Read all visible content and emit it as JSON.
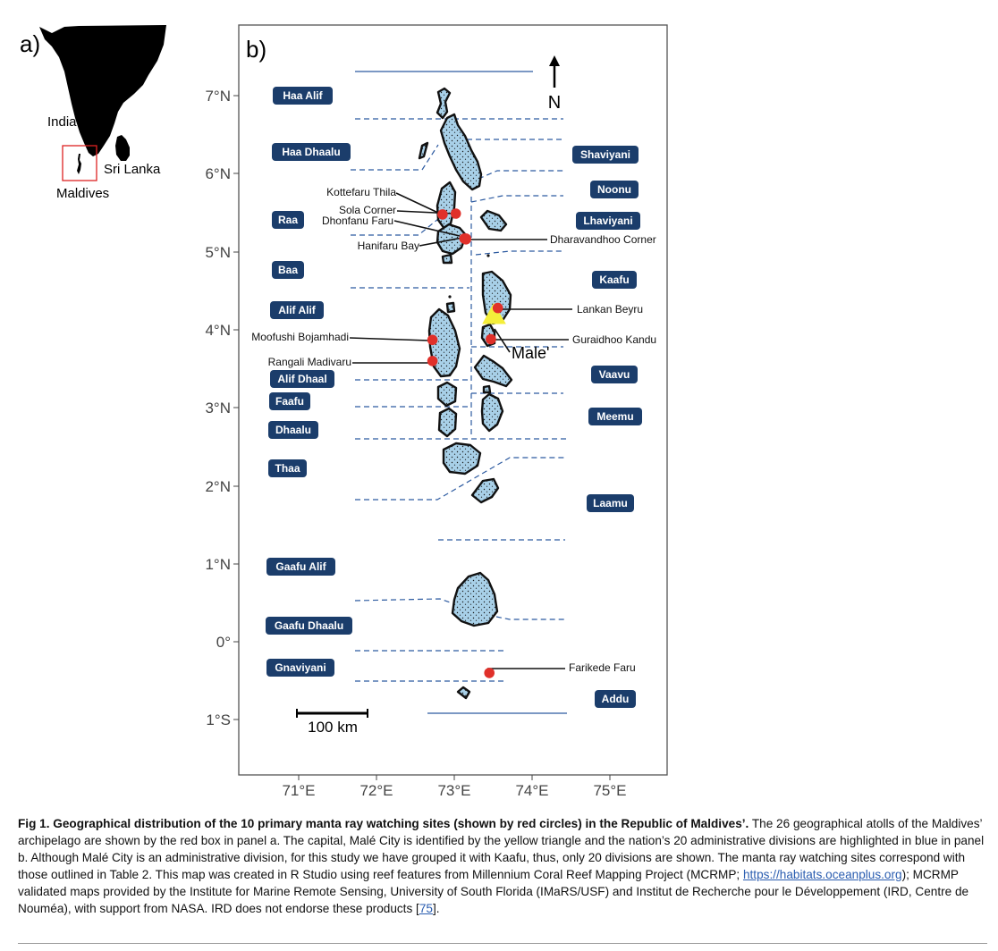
{
  "panels": {
    "a": "a)",
    "b": "b)"
  },
  "inset": {
    "country_labels": {
      "india": "India",
      "sri_lanka": "Sri Lanka",
      "maldives": "Maldives"
    }
  },
  "axes": {
    "lat_ticks": [
      "7°N",
      "6°N",
      "5°N",
      "4°N",
      "3°N",
      "2°N",
      "1°N",
      "0°",
      "1°S"
    ],
    "lon_ticks": [
      "71°E",
      "72°E",
      "73°E",
      "74°E",
      "75°E"
    ],
    "lat_range": [
      -1.75,
      7.9
    ],
    "lon_range": [
      70.3,
      75.8
    ]
  },
  "north_arrow": "N",
  "scale_bar": "100 km",
  "capital_label": "Male'",
  "divisions": [
    "Haa Alif",
    "Haa Dhaalu",
    "Raa",
    "Baa",
    "Alif Alif",
    "Alif Dhaal",
    "Faafu",
    "Dhaalu",
    "Thaa",
    "Gaafu Alif",
    "Gaafu Dhaalu",
    "Gnaviyani",
    "Shaviyani",
    "Noonu",
    "Lhaviyani",
    "Kaafu",
    "Vaavu",
    "Meemu",
    "Laamu",
    "Addu"
  ],
  "sites": [
    {
      "name": "Kottefaru Thila",
      "lon": 72.85,
      "lat": 5.48
    },
    {
      "name": "Sola Corner",
      "lon": 73.02,
      "lat": 5.49
    },
    {
      "name": "Dhonfanu Faru",
      "lon": 73.13,
      "lat": 5.17
    },
    {
      "name": "Hanifaru Bay",
      "lon": 73.15,
      "lat": 5.16
    },
    {
      "name": "Dharavandhoo Corner",
      "lon": 73.15,
      "lat": 5.17
    },
    {
      "name": "Moofushi Bojamhadi",
      "lon": 72.72,
      "lat": 3.87
    },
    {
      "name": "Rangali Madivaru",
      "lon": 72.72,
      "lat": 3.6
    },
    {
      "name": "Lankan Beyru",
      "lon": 73.56,
      "lat": 4.28
    },
    {
      "name": "Guraidhoo Kandu",
      "lon": 73.47,
      "lat": 3.88
    },
    {
      "name": "Farikede Faru",
      "lon": 73.45,
      "lat": -0.4
    }
  ],
  "colors": {
    "division_box": "#1b3d6b",
    "division_text": "#ffffff",
    "boundary": "#2c5aa0",
    "atoll_fill": "#a8d0e8",
    "site": "#e0302a",
    "capital": "#f4ee3a"
  },
  "caption": {
    "label": "Fig 1.",
    "title": "Geographical distribution of the 10 primary manta ray watching sites (shown by red circles) in the Republic of Maldives’.",
    "text_1": " The 26 geographical atolls of the Maldives’ archipelago are shown by the red box in panel a. The capital, Malé City is identified by the yellow triangle and the nation’s 20 administrative divisions are highlighted in blue in panel b. Although Malé City is an administrative division, for this study we have grouped it with Kaafu, thus, only 20 divisions are shown. The manta ray watching sites correspond with those outlined in Table 2. This map was created in R Studio using reef features from Millennium Coral Reef Mapping Project (MCRMP; ",
    "link": "https://habitats.oceanplus.org",
    "text_2": "); MCRMP validated maps provided by the Institute for Marine Remote Sensing, University of South Florida (IMaRS/USF) and Institut de Recherche pour le Développement (IRD, Centre de Nouméa), with support from NASA. IRD does not endorse these products [",
    "ref": "75",
    "text_3": "]."
  }
}
